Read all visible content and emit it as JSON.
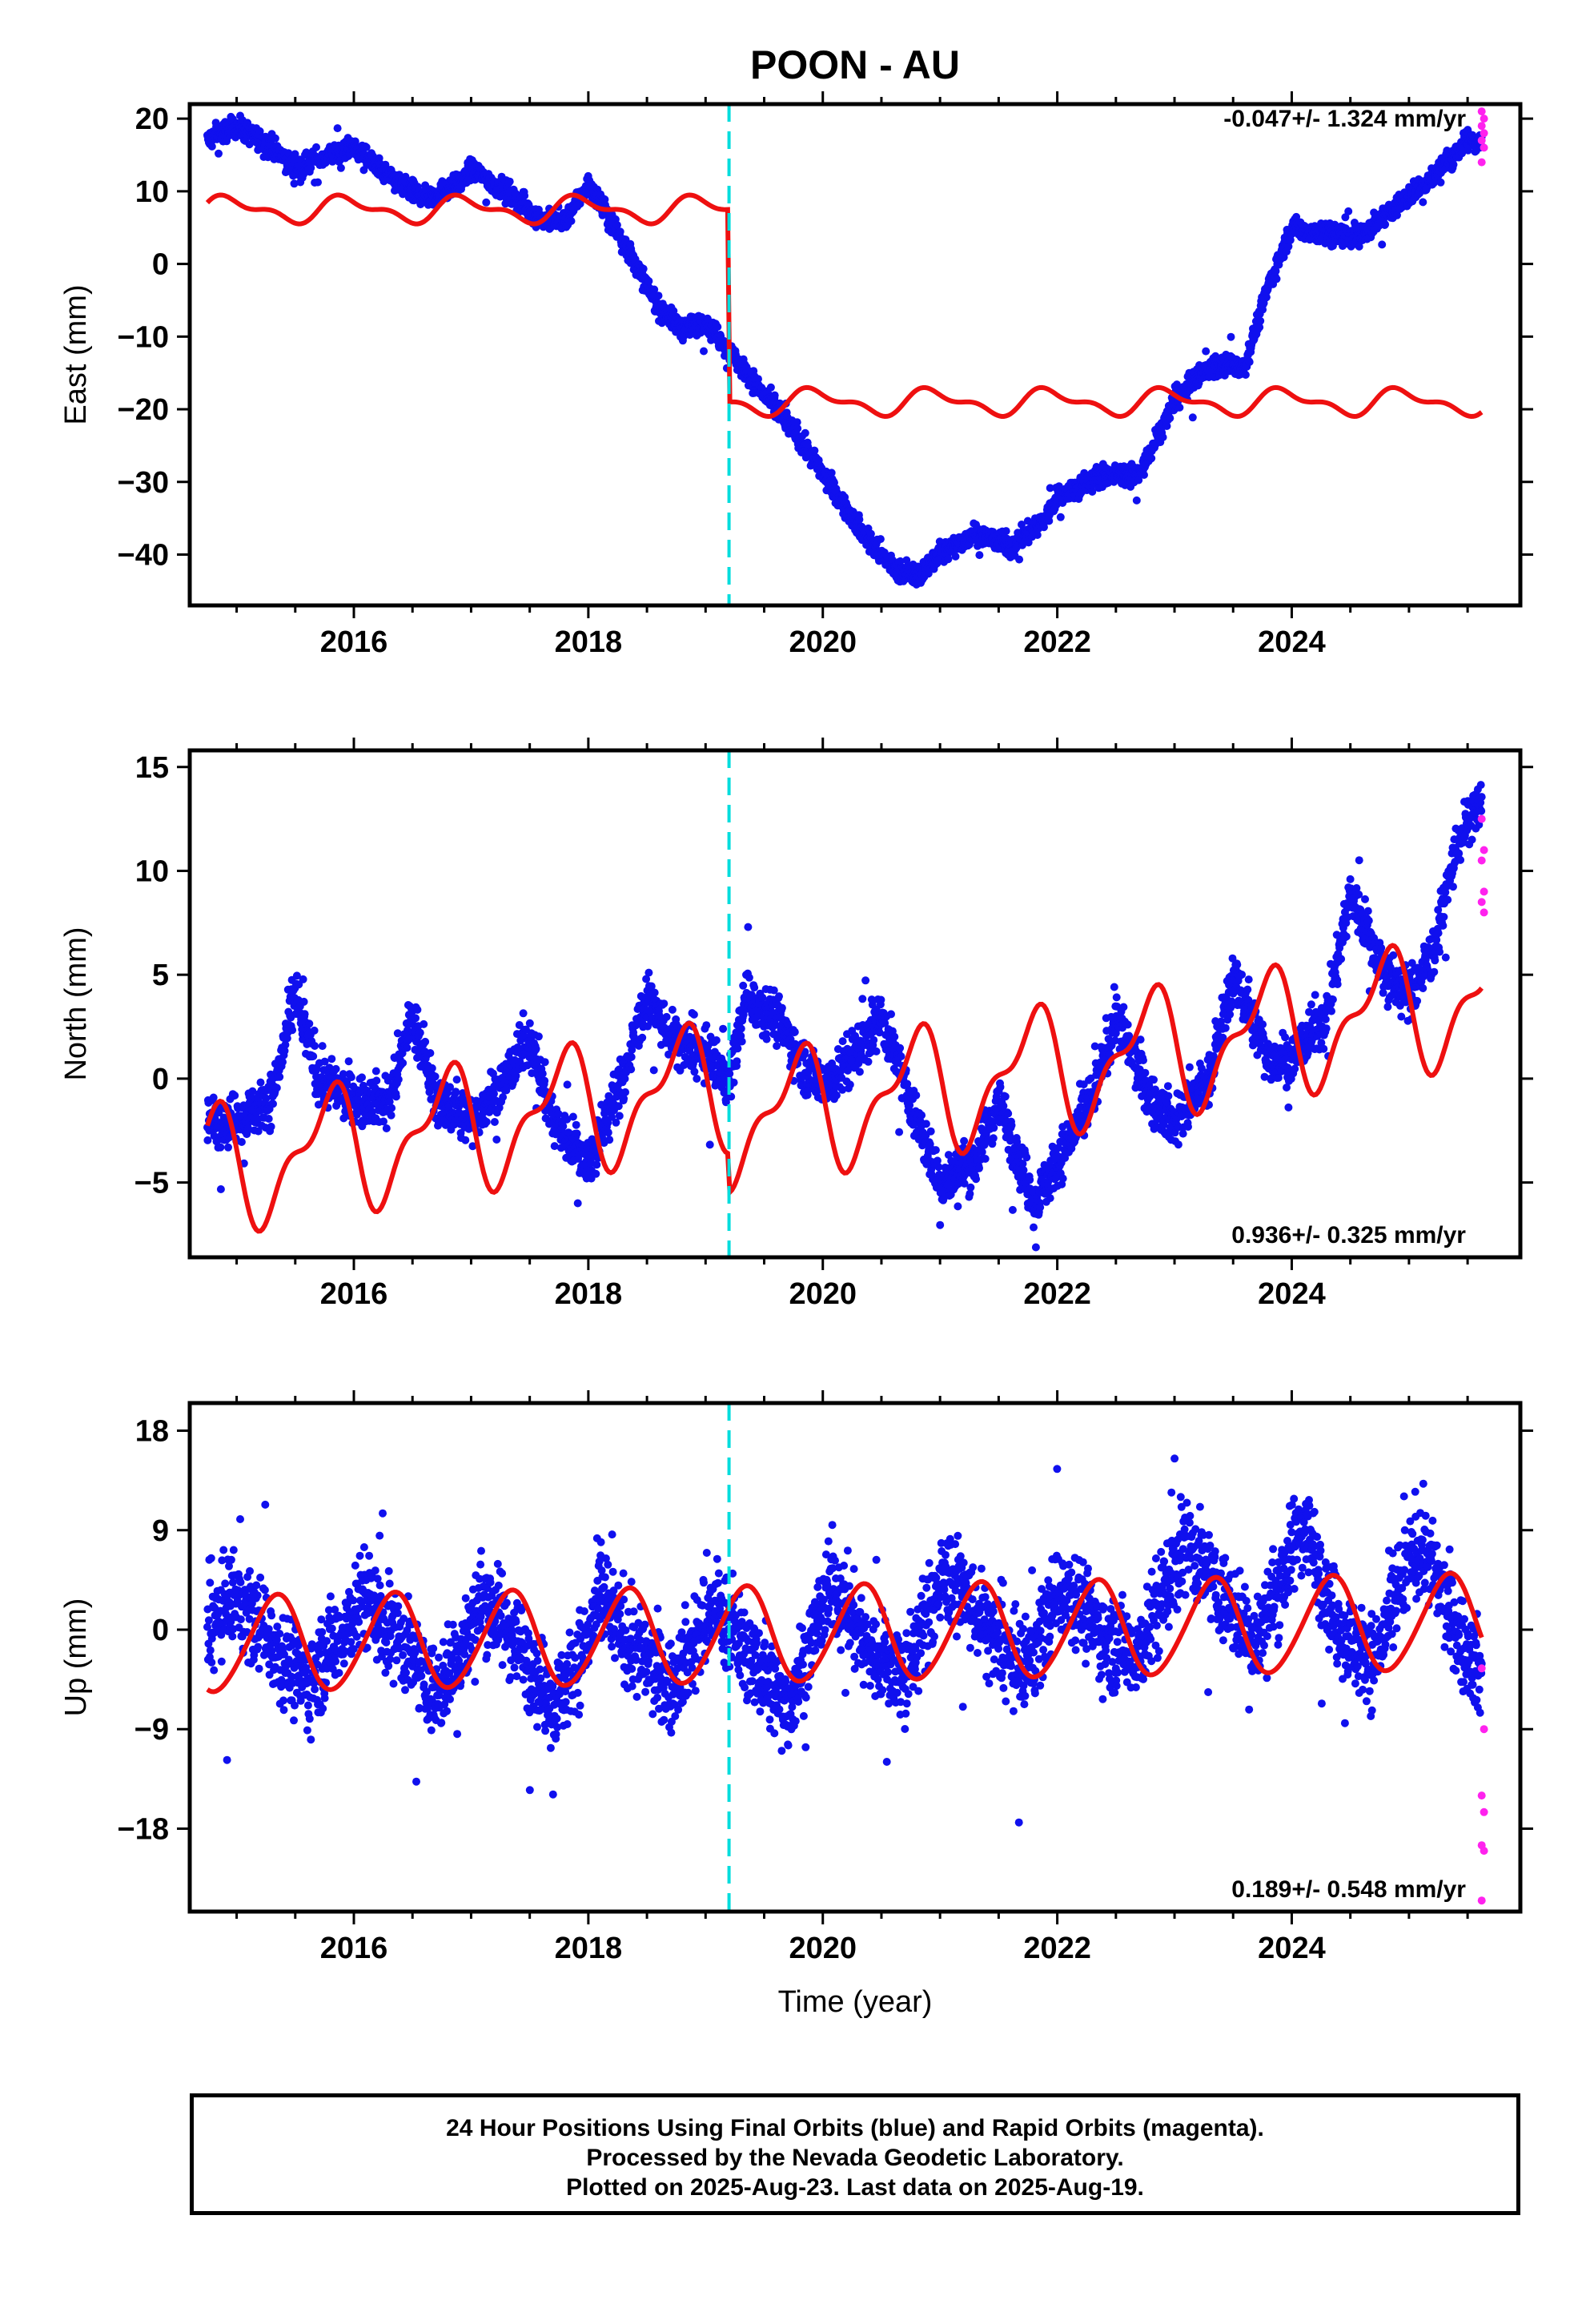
{
  "title": "POON - AU",
  "x_axis_label": "Time (year)",
  "footer": {
    "line1": "24 Hour Positions Using Final Orbits (blue) and Rapid Orbits (magenta).",
    "line2": "Processed by the Nevada Geodetic Laboratory.",
    "line3": "Plotted on 2025-Aug-23. Last data on 2025-Aug-19."
  },
  "colors": {
    "final": "#1010ee",
    "rapid": "#ff22ee",
    "model": "#ee1010",
    "event": "#00dddd"
  },
  "chart_data": [
    {
      "type": "scatter",
      "panel": "east",
      "ylabel": "East (mm)",
      "rate_text": "-0.047+/- 1.324 mm/yr",
      "xlim": [
        2014.6,
        2025.95
      ],
      "ylim": [
        -47,
        22
      ],
      "x_ticks": [
        2016,
        2018,
        2020,
        2022,
        2024
      ],
      "y_ticks": [
        20,
        10,
        0,
        -10,
        -20,
        -30,
        -40
      ],
      "event_x": 2019.2,
      "final_trend": [
        [
          2014.75,
          17
        ],
        [
          2015.0,
          19
        ],
        [
          2015.3,
          16
        ],
        [
          2015.5,
          13
        ],
        [
          2015.8,
          15
        ],
        [
          2016.0,
          16
        ],
        [
          2016.3,
          12
        ],
        [
          2016.6,
          9
        ],
        [
          2016.9,
          11
        ],
        [
          2017.0,
          13
        ],
        [
          2017.3,
          10
        ],
        [
          2017.6,
          6
        ],
        [
          2017.8,
          6
        ],
        [
          2018.0,
          11
        ],
        [
          2018.3,
          3
        ],
        [
          2018.6,
          -6
        ],
        [
          2018.8,
          -9
        ],
        [
          2019.0,
          -8
        ],
        [
          2019.2,
          -12
        ],
        [
          2019.5,
          -18
        ],
        [
          2019.8,
          -24
        ],
        [
          2020.0,
          -29
        ],
        [
          2020.3,
          -36
        ],
        [
          2020.6,
          -42
        ],
        [
          2020.8,
          -43
        ],
        [
          2021.0,
          -40
        ],
        [
          2021.3,
          -37
        ],
        [
          2021.6,
          -39
        ],
        [
          2021.9,
          -35
        ],
        [
          2022.0,
          -32
        ],
        [
          2022.4,
          -29
        ],
        [
          2022.7,
          -29
        ],
        [
          2023.0,
          -19
        ],
        [
          2023.3,
          -14
        ],
        [
          2023.6,
          -14
        ],
        [
          2023.8,
          -3
        ],
        [
          2024.0,
          5
        ],
        [
          2024.3,
          4
        ],
        [
          2024.6,
          4
        ],
        [
          2024.9,
          8
        ],
        [
          2025.2,
          12
        ],
        [
          2025.5,
          17
        ],
        [
          2025.62,
          17
        ]
      ],
      "final_scatter": 1.3,
      "rapid_x_range": [
        2025.62,
        2025.64
      ],
      "rapid_y": [
        21,
        20,
        19,
        18,
        17,
        16,
        14
      ],
      "model": {
        "offset_before": 7.5,
        "offset_after": -19,
        "trend_before": 0,
        "trend_after": 0,
        "annual_amp": 1.5,
        "annual_phase": 0.7,
        "semiannual_amp": 0.8,
        "semiannual_phase": 0.2,
        "x_start": 2014.75,
        "x_end": 2025.62
      }
    },
    {
      "type": "scatter",
      "panel": "north",
      "ylabel": "North (mm)",
      "rate_text": "0.936+/- 0.325 mm/yr",
      "xlim": [
        2014.6,
        2025.95
      ],
      "ylim": [
        -8.6,
        15.8
      ],
      "x_ticks": [
        2016,
        2018,
        2020,
        2022,
        2024
      ],
      "y_ticks": [
        15,
        10,
        5,
        0,
        -5
      ],
      "event_x": 2019.2,
      "final_trend": [
        [
          2014.75,
          -2
        ],
        [
          2015.0,
          -2
        ],
        [
          2015.3,
          -1
        ],
        [
          2015.5,
          4
        ],
        [
          2015.7,
          0
        ],
        [
          2016.0,
          -1
        ],
        [
          2016.3,
          -1
        ],
        [
          2016.5,
          3
        ],
        [
          2016.7,
          -1
        ],
        [
          2017.0,
          -2
        ],
        [
          2017.3,
          0
        ],
        [
          2017.5,
          2
        ],
        [
          2017.7,
          -2
        ],
        [
          2018.0,
          -4
        ],
        [
          2018.3,
          0
        ],
        [
          2018.5,
          4
        ],
        [
          2018.7,
          2
        ],
        [
          2019.0,
          1
        ],
        [
          2019.2,
          0
        ],
        [
          2019.35,
          4
        ],
        [
          2019.6,
          3
        ],
        [
          2019.9,
          0
        ],
        [
          2020.1,
          0
        ],
        [
          2020.5,
          3
        ],
        [
          2020.8,
          -2
        ],
        [
          2021.0,
          -5
        ],
        [
          2021.3,
          -4
        ],
        [
          2021.5,
          -1
        ],
        [
          2021.8,
          -6
        ],
        [
          2022.0,
          -4
        ],
        [
          2022.3,
          -1
        ],
        [
          2022.5,
          3
        ],
        [
          2022.8,
          -1
        ],
        [
          2023.0,
          -2
        ],
        [
          2023.3,
          0
        ],
        [
          2023.5,
          5
        ],
        [
          2023.8,
          1
        ],
        [
          2024.0,
          1
        ],
        [
          2024.3,
          3
        ],
        [
          2024.5,
          9
        ],
        [
          2024.8,
          5
        ],
        [
          2025.0,
          4
        ],
        [
          2025.2,
          6
        ],
        [
          2025.4,
          11
        ],
        [
          2025.55,
          13
        ],
        [
          2025.62,
          13
        ]
      ],
      "final_scatter": 1.1,
      "rapid_x_range": [
        2025.62,
        2025.64
      ],
      "rapid_y": [
        12.5,
        11,
        10.5,
        9,
        8.5,
        8
      ],
      "model": {
        "offset_before": -4.4,
        "offset_after": -6.3,
        "trend_before": 0.94,
        "trend_after": 0.94,
        "annual_amp": 2.6,
        "annual_phase": 0.52,
        "semiannual_amp": 1.2,
        "semiannual_phase": 0.78,
        "x_start": 2014.75,
        "x_end": 2025.62
      }
    },
    {
      "type": "scatter",
      "panel": "up",
      "ylabel": "Up (mm)",
      "rate_text": "0.189+/- 0.548 mm/yr",
      "xlim": [
        2014.6,
        2025.95
      ],
      "ylim": [
        -25.5,
        20.5
      ],
      "x_ticks": [
        2016,
        2018,
        2020,
        2022,
        2024
      ],
      "y_ticks": [
        18,
        9,
        0,
        -9,
        -18
      ],
      "event_x": 2019.2,
      "final_trend": [
        [
          2014.75,
          0
        ],
        [
          2015.0,
          3
        ],
        [
          2015.3,
          -1
        ],
        [
          2015.6,
          -5
        ],
        [
          2015.9,
          0
        ],
        [
          2016.1,
          3
        ],
        [
          2016.4,
          -1
        ],
        [
          2016.7,
          -6
        ],
        [
          2017.0,
          0
        ],
        [
          2017.1,
          3
        ],
        [
          2017.4,
          -1
        ],
        [
          2017.7,
          -7
        ],
        [
          2018.0,
          -1
        ],
        [
          2018.1,
          3
        ],
        [
          2018.4,
          -2
        ],
        [
          2018.7,
          -5
        ],
        [
          2019.0,
          1
        ],
        [
          2019.1,
          2
        ],
        [
          2019.4,
          -3
        ],
        [
          2019.7,
          -7
        ],
        [
          2020.0,
          2
        ],
        [
          2020.1,
          4
        ],
        [
          2020.4,
          -2
        ],
        [
          2020.7,
          -4
        ],
        [
          2021.0,
          4
        ],
        [
          2021.1,
          5
        ],
        [
          2021.4,
          0
        ],
        [
          2021.7,
          -4
        ],
        [
          2022.0,
          3
        ],
        [
          2022.1,
          4
        ],
        [
          2022.4,
          -1
        ],
        [
          2022.7,
          -2
        ],
        [
          2023.0,
          6
        ],
        [
          2023.1,
          8
        ],
        [
          2023.4,
          3
        ],
        [
          2023.7,
          -1
        ],
        [
          2024.0,
          7
        ],
        [
          2024.1,
          10
        ],
        [
          2024.4,
          0
        ],
        [
          2024.7,
          -3
        ],
        [
          2025.0,
          6
        ],
        [
          2025.1,
          8
        ],
        [
          2025.4,
          0
        ],
        [
          2025.62,
          -4
        ]
      ],
      "final_scatter": 3.8,
      "rapid_x_range": [
        2025.62,
        2025.64
      ],
      "rapid_y": [
        -3.5,
        -9,
        -15,
        -16.5,
        -19.5,
        -20,
        -24.5
      ],
      "model": {
        "offset_before": -1.4,
        "offset_after": -1.4,
        "trend_before": 0.19,
        "trend_after": 0.19,
        "annual_amp": 4.3,
        "annual_phase": 0.08,
        "semiannual_amp": 0.4,
        "semiannual_phase": 0.3,
        "x_start": 2014.75,
        "x_end": 2025.62
      }
    }
  ]
}
